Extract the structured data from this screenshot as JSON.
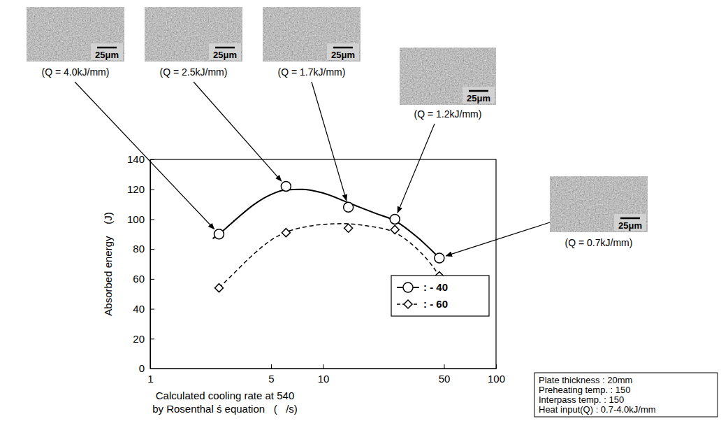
{
  "chart_data": {
    "type": "line",
    "xlabel": [
      "Calculated cooling rate at 540",
      "by Rosenthal ś equation   (   /s)"
    ],
    "ylabel": "Absorbed energy    (J)",
    "log": "x",
    "xlim": [
      1,
      100
    ],
    "xticks": [
      1,
      5,
      10,
      50,
      100
    ],
    "ylim": [
      0,
      140
    ],
    "yticks": [
      0,
      20,
      40,
      60,
      80,
      100,
      120,
      140
    ],
    "legend": "lower right",
    "series": [
      {
        "name": ": - 40",
        "color": "#000000",
        "marker": "circle",
        "line_style": "solid",
        "x": [
          2.5,
          6.1,
          14,
          26,
          47
        ],
        "values": [
          90,
          122,
          108,
          100,
          74
        ],
        "fit_x": [
          2.3,
          2.5,
          3,
          4,
          5,
          6,
          7.5,
          10,
          14,
          20,
          26,
          35,
          47
        ],
        "fit_values": [
          87,
          90,
          98,
          110,
          116.5,
          119.5,
          120,
          117.5,
          111,
          104,
          99,
          88,
          74
        ]
      },
      {
        "name": ": - 60",
        "color": "#000000",
        "marker": "diamond",
        "line_style": "dashed",
        "x": [
          2.5,
          6.1,
          14,
          26,
          47
        ],
        "values": [
          54,
          91,
          94,
          93,
          62
        ],
        "fit_x": [
          2.5,
          3,
          4,
          5,
          6,
          8,
          10,
          13,
          18,
          26,
          35,
          42,
          47
        ],
        "fit_values": [
          54,
          63,
          77,
          86,
          91,
          95,
          96.5,
          97,
          95.5,
          91,
          80,
          70,
          62
        ]
      }
    ],
    "annotations": [
      {
        "text": "(Q = 4.0kJ/mm)",
        "scale_bar": "25μm",
        "series": 0,
        "point": 0
      },
      {
        "text": "(Q = 2.5kJ/mm)",
        "scale_bar": "25μm",
        "series": 0,
        "point": 1
      },
      {
        "text": "(Q = 1.7kJ/mm)",
        "scale_bar": "25μm",
        "series": 0,
        "point": 2
      },
      {
        "text": "(Q = 1.2kJ/mm)",
        "scale_bar": "25μm",
        "series": 0,
        "point": 3
      },
      {
        "text": "(Q = 0.7kJ/mm)",
        "scale_bar": "25μm",
        "series": 0,
        "point": 4
      }
    ],
    "notes": [
      "Plate thickness : 20mm",
      "Preheating temp. : 150",
      "Interpass temp. : 150",
      "Heat input(Q) : 0.7-4.0kJ/mm"
    ]
  }
}
